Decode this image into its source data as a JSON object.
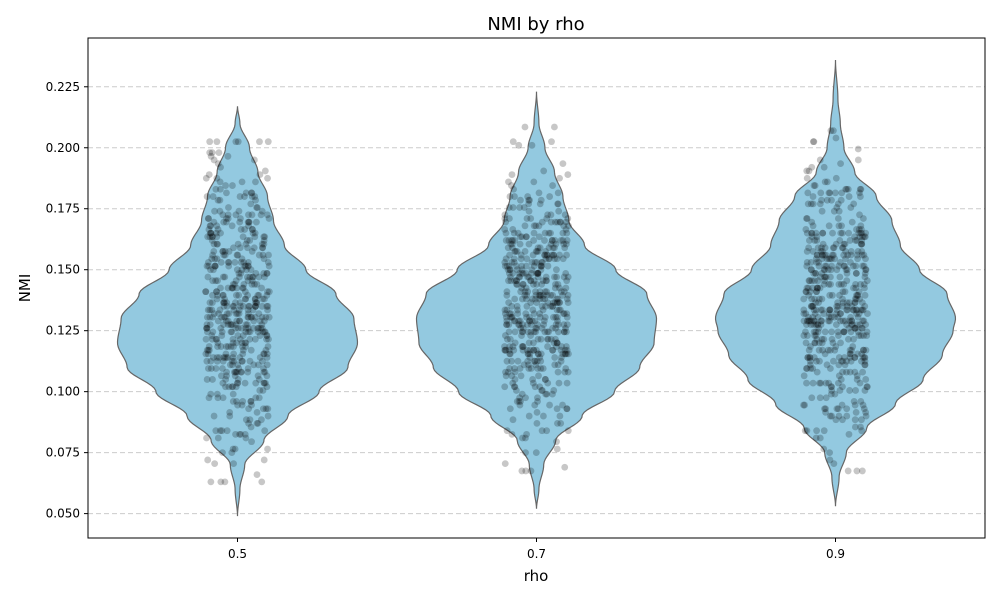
{
  "chart_data": {
    "type": "violin",
    "title": "NMI by rho",
    "xlabel": "rho",
    "ylabel": "NMI",
    "categories": [
      "0.5",
      "0.7",
      "0.9"
    ],
    "ylim": [
      0.04,
      0.245
    ],
    "yticks": [
      "0.050",
      "0.075",
      "0.100",
      "0.125",
      "0.150",
      "0.175",
      "0.200",
      "0.225"
    ],
    "grid": {
      "y": true,
      "style": "dashed"
    },
    "violin_color": "#93c9e0",
    "violin_edge_color": "#666666",
    "point_color": "#000000",
    "groups": [
      {
        "label": "0.5",
        "min": 0.049,
        "max": 0.217,
        "density_profile": [
          [
            0.049,
            0.0
          ],
          [
            0.06,
            0.02
          ],
          [
            0.07,
            0.06
          ],
          [
            0.08,
            0.22
          ],
          [
            0.09,
            0.42
          ],
          [
            0.1,
            0.68
          ],
          [
            0.11,
            0.92
          ],
          [
            0.12,
            1.0
          ],
          [
            0.13,
            0.97
          ],
          [
            0.14,
            0.82
          ],
          [
            0.15,
            0.57
          ],
          [
            0.16,
            0.39
          ],
          [
            0.17,
            0.3
          ],
          [
            0.18,
            0.25
          ],
          [
            0.19,
            0.17
          ],
          [
            0.2,
            0.1
          ],
          [
            0.21,
            0.02
          ],
          [
            0.217,
            0.0
          ]
        ],
        "point_count": 500,
        "point_mean": 0.136,
        "point_sd": 0.03,
        "point_range": [
          0.063,
          0.203
        ]
      },
      {
        "label": "0.7",
        "min": 0.052,
        "max": 0.223,
        "density_profile": [
          [
            0.052,
            0.0
          ],
          [
            0.06,
            0.02
          ],
          [
            0.07,
            0.06
          ],
          [
            0.08,
            0.16
          ],
          [
            0.09,
            0.38
          ],
          [
            0.1,
            0.65
          ],
          [
            0.11,
            0.86
          ],
          [
            0.12,
            0.98
          ],
          [
            0.13,
            1.0
          ],
          [
            0.14,
            0.92
          ],
          [
            0.15,
            0.66
          ],
          [
            0.16,
            0.4
          ],
          [
            0.17,
            0.27
          ],
          [
            0.18,
            0.22
          ],
          [
            0.19,
            0.15
          ],
          [
            0.2,
            0.07
          ],
          [
            0.21,
            0.02
          ],
          [
            0.223,
            0.0
          ]
        ],
        "point_count": 500,
        "point_mean": 0.134,
        "point_sd": 0.028,
        "point_range": [
          0.067,
          0.209
        ]
      },
      {
        "label": "0.9",
        "min": 0.053,
        "max": 0.236,
        "density_profile": [
          [
            0.053,
            0.0
          ],
          [
            0.065,
            0.03
          ],
          [
            0.075,
            0.09
          ],
          [
            0.085,
            0.26
          ],
          [
            0.095,
            0.5
          ],
          [
            0.105,
            0.73
          ],
          [
            0.115,
            0.89
          ],
          [
            0.125,
            0.98
          ],
          [
            0.13,
            1.0
          ],
          [
            0.14,
            0.93
          ],
          [
            0.15,
            0.7
          ],
          [
            0.16,
            0.54
          ],
          [
            0.17,
            0.47
          ],
          [
            0.18,
            0.34
          ],
          [
            0.19,
            0.16
          ],
          [
            0.2,
            0.07
          ],
          [
            0.21,
            0.04
          ],
          [
            0.22,
            0.02
          ],
          [
            0.236,
            0.0
          ]
        ],
        "point_count": 500,
        "point_mean": 0.136,
        "point_sd": 0.027,
        "point_range": [
          0.068,
          0.222
        ]
      }
    ]
  }
}
